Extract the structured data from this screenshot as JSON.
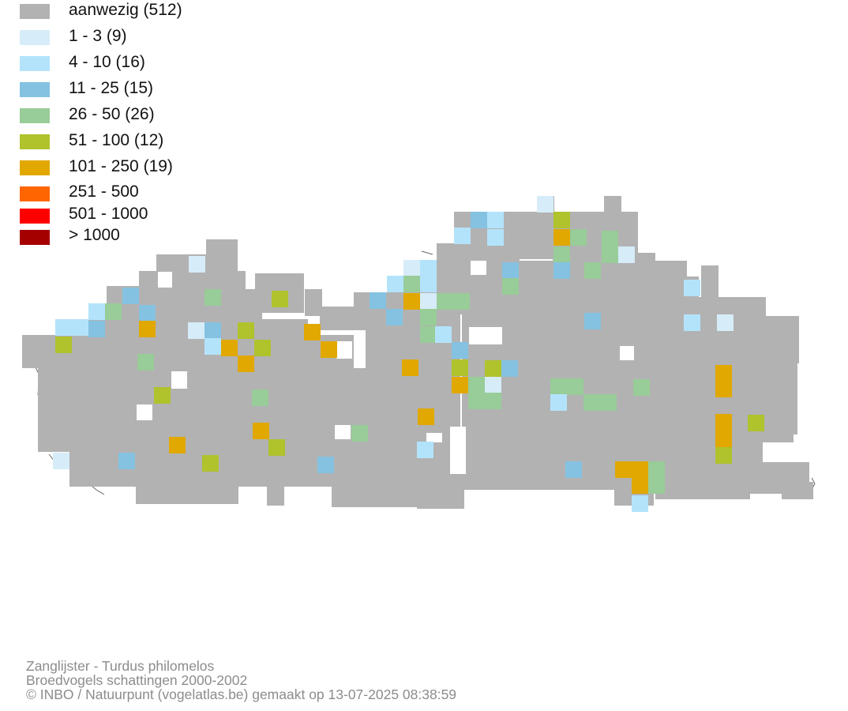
{
  "legend": [
    {
      "label": "aanwezig (512)",
      "color": "#b2b2b2"
    },
    {
      "label": "1 - 3 (9)",
      "color": "#d6ecf8"
    },
    {
      "label": "4 - 10 (16)",
      "color": "#b3e3fb"
    },
    {
      "label": "11 - 25 (15)",
      "color": "#85c2e1"
    },
    {
      "label": "26 - 50 (26)",
      "color": "#98cc98"
    },
    {
      "label": "51 - 100 (12)",
      "color": "#b0c22c"
    },
    {
      "label": "101 - 250 (19)",
      "color": "#e0a800"
    },
    {
      "label": "251 - 500",
      "color": "#ff6600"
    },
    {
      "label": "501 - 1000",
      "color": "#ff0000"
    },
    {
      "label": "> 1000",
      "color": "#a50000"
    }
  ],
  "footer": {
    "species": "Zanglijster - Turdus philomelos",
    "dataset": "Broedvogels schattingen 2000-2002",
    "credit": "© INBO / Natuurpunt (vogelatlas.be) gemaakt op 13-07-2025 08:38:59"
  }
}
